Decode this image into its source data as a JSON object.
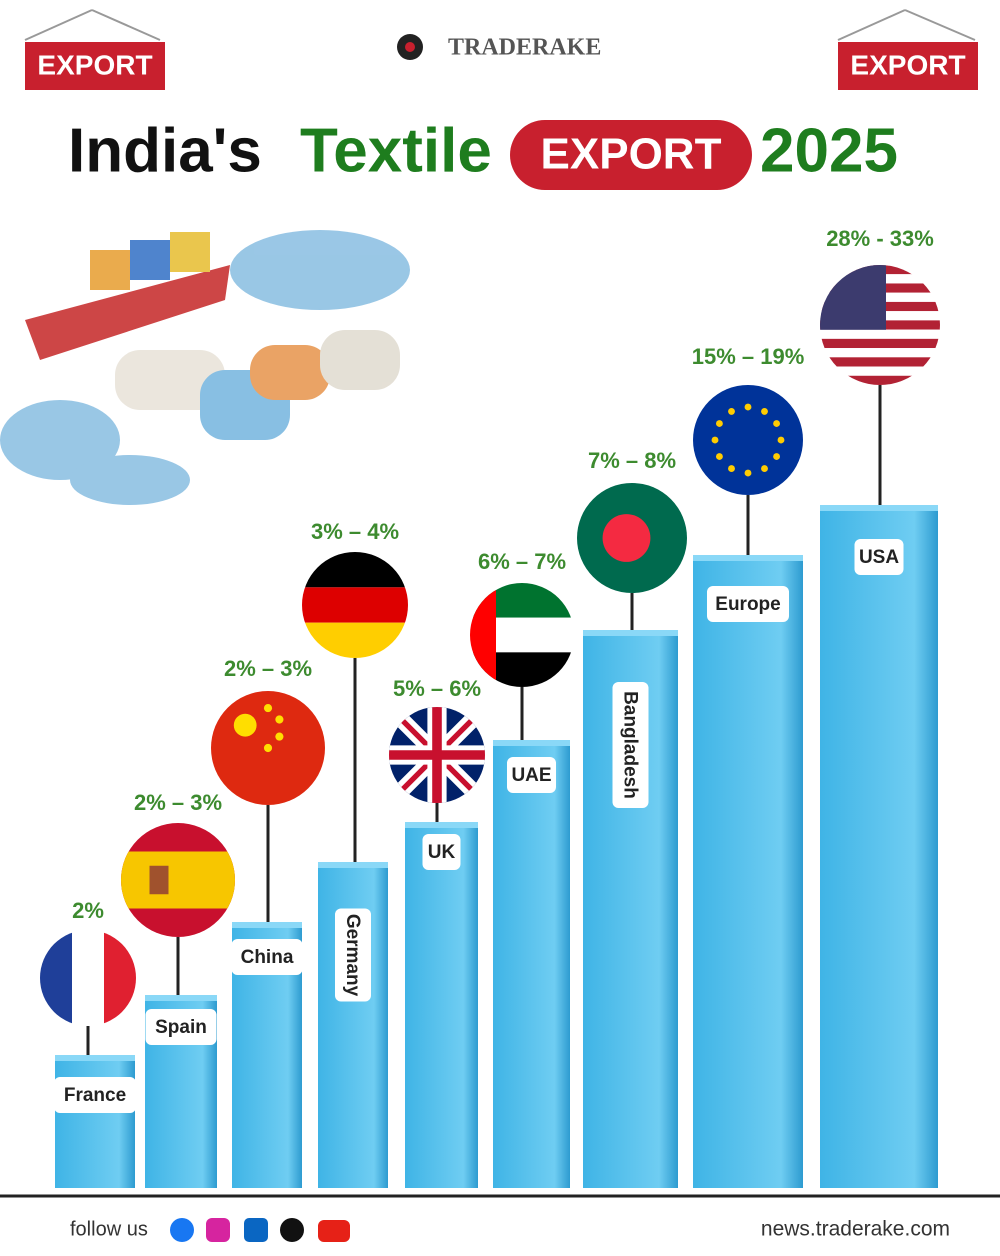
{
  "header": {
    "left_sign": "EXPORT",
    "brand": "TRADERAKE",
    "right_sign": "EXPORT"
  },
  "title": {
    "part1": "India's",
    "part2": "Textile",
    "badge": "EXPORT",
    "year": "2025"
  },
  "countries": [
    {
      "name": "France",
      "share": "2%"
    },
    {
      "name": "Spain",
      "share": "2% – 3%"
    },
    {
      "name": "China",
      "share": "2% – 3%"
    },
    {
      "name": "Germany",
      "share": "3% – 4%"
    },
    {
      "name": "UK",
      "share": "5% – 6%"
    },
    {
      "name": "UAE",
      "share": "6% – 7%"
    },
    {
      "name": "Bangladesh",
      "share": "7% – 8%"
    },
    {
      "name": "Europe",
      "share": "15% – 19%"
    },
    {
      "name": "USA",
      "share": "28% - 33%"
    }
  ],
  "footer": {
    "follow": "follow us",
    "site": "news.traderake.com"
  }
}
